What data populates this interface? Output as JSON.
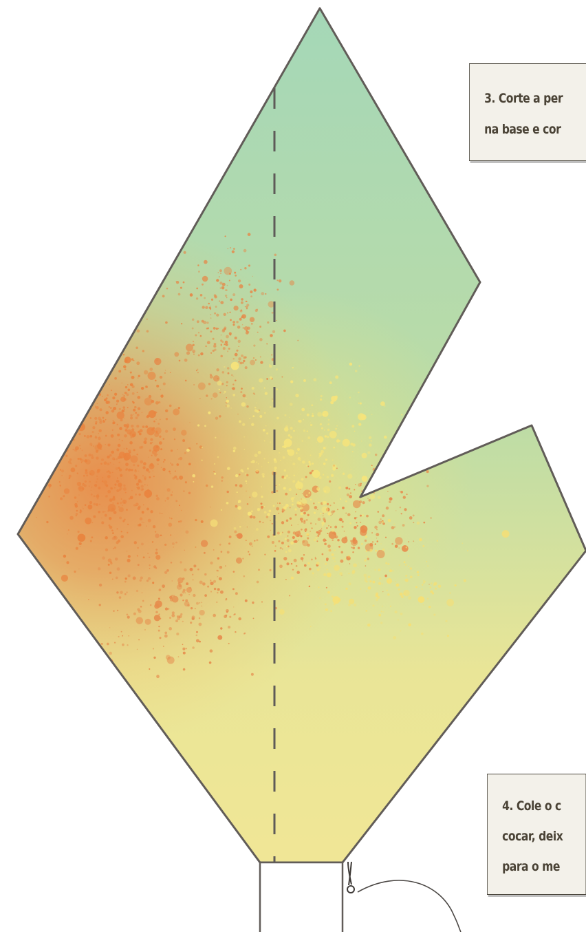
{
  "notes": {
    "step3": {
      "line1": "3. Corte a per",
      "line2": "na base e cor"
    },
    "step4": {
      "line1": "4. Cole o c",
      "line2": "cocar, deix",
      "line3": "para o me"
    }
  },
  "colors": {
    "green": "#a6d7b6",
    "yellow": "#f1e796",
    "orange": "#e8894a",
    "outline": "#615c58",
    "fold_line": "#5e5a58"
  },
  "icons": {
    "scissors": "scissors-icon"
  }
}
